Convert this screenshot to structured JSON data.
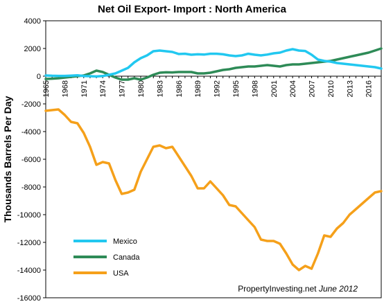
{
  "chart_data": {
    "type": "line",
    "title": "Net Oil Export- Import : North America",
    "xlabel": "",
    "ylabel": "Thousands Barrels Per Day",
    "ylim": [
      -16000,
      4000
    ],
    "yticks": [
      4000,
      2000,
      0,
      -2000,
      -4000,
      -6000,
      -8000,
      -10000,
      -12000,
      -14000,
      -16000
    ],
    "xlim": [
      1965,
      2018
    ],
    "xticks": [
      1965,
      1968,
      1971,
      1974,
      1977,
      1980,
      1983,
      1986,
      1989,
      1992,
      1995,
      1998,
      2001,
      2004,
      2007,
      2010,
      2013,
      2016
    ],
    "grid": false,
    "legend_position": "bottom-left",
    "colors": {
      "Mexico": "#22c8f0",
      "Canada": "#2e8b57",
      "USA": "#f5a01a"
    },
    "x": [
      1965,
      1966,
      1967,
      1968,
      1969,
      1970,
      1971,
      1972,
      1973,
      1974,
      1975,
      1976,
      1977,
      1978,
      1979,
      1980,
      1981,
      1982,
      1983,
      1984,
      1985,
      1986,
      1987,
      1988,
      1989,
      1990,
      1991,
      1992,
      1993,
      1994,
      1995,
      1996,
      1997,
      1998,
      1999,
      2000,
      2001,
      2002,
      2003,
      2004,
      2005,
      2006,
      2007,
      2008,
      2009,
      2010,
      2011,
      2012,
      2013,
      2014,
      2015,
      2016,
      2017,
      2018
    ],
    "series": [
      {
        "name": "Mexico",
        "values": [
          50,
          30,
          20,
          20,
          40,
          60,
          10,
          0,
          -20,
          10,
          100,
          200,
          400,
          600,
          1000,
          1300,
          1500,
          1800,
          1850,
          1800,
          1750,
          1600,
          1620,
          1550,
          1580,
          1560,
          1620,
          1620,
          1580,
          1500,
          1450,
          1500,
          1620,
          1550,
          1500,
          1560,
          1650,
          1700,
          1850,
          1950,
          1850,
          1820,
          1550,
          1200,
          1100,
          1050,
          950,
          900,
          850,
          800,
          750,
          700,
          650,
          550
        ]
      },
      {
        "name": "Canada",
        "values": [
          -200,
          -180,
          -150,
          -100,
          -50,
          0,
          50,
          200,
          400,
          300,
          100,
          -100,
          -250,
          -250,
          -150,
          -250,
          -100,
          100,
          250,
          280,
          270,
          300,
          300,
          300,
          200,
          200,
          250,
          350,
          450,
          500,
          600,
          650,
          700,
          700,
          750,
          800,
          750,
          700,
          800,
          850,
          850,
          900,
          950,
          1000,
          1050,
          1100,
          1200,
          1300,
          1400,
          1500,
          1600,
          1700,
          1850,
          2000
        ]
      },
      {
        "name": "USA",
        "values": [
          -2500,
          -2450,
          -2400,
          -2800,
          -3300,
          -3400,
          -4100,
          -5100,
          -6400,
          -6200,
          -6300,
          -7500,
          -8500,
          -8400,
          -8200,
          -6900,
          -6000,
          -5100,
          -5000,
          -5200,
          -5100,
          -5800,
          -6500,
          -7200,
          -8100,
          -8100,
          -7600,
          -8100,
          -8600,
          -9300,
          -9400,
          -9900,
          -10400,
          -10900,
          -11800,
          -11900,
          -11900,
          -12100,
          -12800,
          -13600,
          -14000,
          -13700,
          -13900,
          -12800,
          -11500,
          -11600,
          -11000,
          -10600,
          -10000,
          -9600,
          -9200,
          -8800,
          -8400,
          -8300
        ]
      }
    ],
    "annotation": {
      "source": "PropertyInvesting.net",
      "date": "June 2012"
    }
  }
}
